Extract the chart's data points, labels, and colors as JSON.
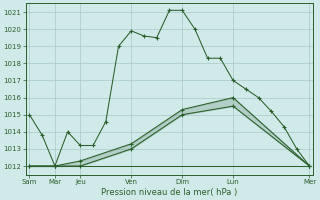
{
  "title": "",
  "xlabel": "Pression niveau de la mer( hPa )",
  "background_color": "#d0eaea",
  "grid_color": "#a8c8c8",
  "line_color": "#2a5f2a",
  "axis_color": "#2a5f2a",
  "text_color": "#2a5f2a",
  "ylim": [
    1011.5,
    1021.5
  ],
  "yticks": [
    1012,
    1013,
    1014,
    1015,
    1016,
    1017,
    1018,
    1019,
    1020,
    1021
  ],
  "xlim": [
    -0.3,
    22.3
  ],
  "day_tick_positions": [
    0,
    2,
    4,
    8,
    12,
    16,
    22
  ],
  "day_tick_labels": [
    "Sam",
    "Mar",
    "Jeu",
    "Ven",
    "Dim",
    "Lun",
    "Mer"
  ],
  "line1_x": [
    0,
    1,
    2,
    3,
    4,
    5,
    6,
    7,
    8,
    9,
    10,
    11,
    12,
    13,
    14,
    15,
    16,
    17,
    18,
    19,
    20,
    21,
    22
  ],
  "line1_y": [
    1015,
    1013.8,
    1012,
    1014,
    1013.2,
    1013.2,
    1014.6,
    1019.0,
    1019.9,
    1019.6,
    1019.5,
    1021.1,
    1021.1,
    1020.0,
    1018.3,
    1018.3,
    1017.0,
    1016.5,
    1016.0,
    1015.2,
    1014.3,
    1013.0,
    1012.0
  ],
  "line2_x": [
    0,
    2,
    4,
    8,
    12,
    16,
    22
  ],
  "line2_y": [
    1012.0,
    1012.0,
    1012.0,
    1013.0,
    1015.0,
    1015.5,
    1012.0
  ],
  "line3_x": [
    0,
    2,
    4,
    8,
    12,
    16,
    22
  ],
  "line3_y": [
    1012.0,
    1012.0,
    1012.3,
    1013.3,
    1015.3,
    1016.0,
    1012.0
  ],
  "line4_x": [
    0,
    22
  ],
  "line4_y": [
    1012.0,
    1012.0
  ],
  "figsize": [
    3.2,
    2.0
  ],
  "dpi": 100
}
